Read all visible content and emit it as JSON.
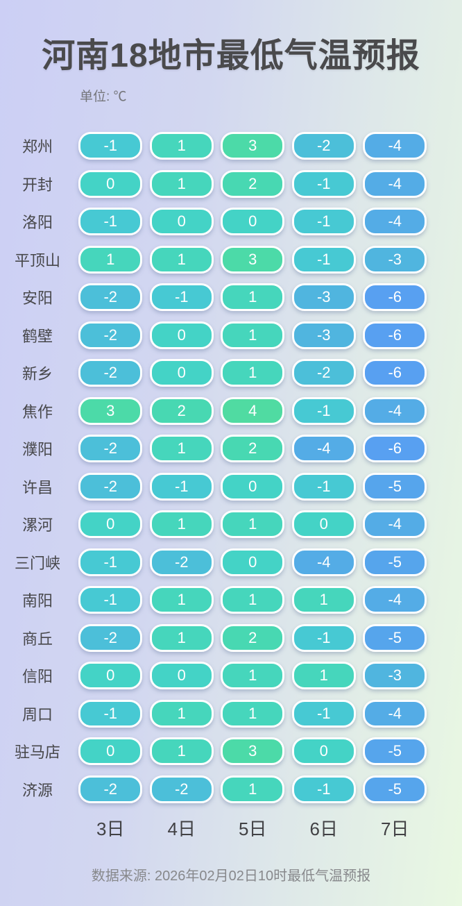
{
  "title": "河南18地市最低气温预报",
  "unit_label": "单位: ℃",
  "source_note": "数据来源: 2026年02月02日10时最低气温预报",
  "colors": {
    "background_left": "#cccff5",
    "background_right": "#e9f8e2",
    "title_text": "#4a4a4c",
    "city_label_text": "#47474a",
    "pill_text": "#ffffff",
    "pill_border": "#ffffff",
    "muted_text": "#87888b",
    "temp_scale": {
      "4": "#50dba2",
      "3": "#4cdaa8",
      "2": "#48d8b2",
      "1": "#46d6bc",
      "0": "#44d3c6",
      "-1": "#47c9d3",
      "-2": "#4cbfd9",
      "-3": "#50b5df",
      "-4": "#54ace6",
      "-5": "#56a5ec",
      "-6": "#58a0f1"
    }
  },
  "chart_data": {
    "type": "table",
    "title": "河南18地市最低气温预报",
    "unit": "℃",
    "columns": [
      "3日",
      "4日",
      "5日",
      "6日",
      "7日"
    ],
    "rows": [
      {
        "city": "郑州",
        "values": [
          -1,
          1,
          3,
          -2,
          -4
        ]
      },
      {
        "city": "开封",
        "values": [
          0,
          1,
          2,
          -1,
          -4
        ]
      },
      {
        "city": "洛阳",
        "values": [
          -1,
          0,
          0,
          -1,
          -4
        ]
      },
      {
        "city": "平顶山",
        "values": [
          1,
          1,
          3,
          -1,
          -3
        ]
      },
      {
        "city": "安阳",
        "values": [
          -2,
          -1,
          1,
          -3,
          -6
        ]
      },
      {
        "city": "鹤壁",
        "values": [
          -2,
          0,
          1,
          -3,
          -6
        ]
      },
      {
        "city": "新乡",
        "values": [
          -2,
          0,
          1,
          -2,
          -6
        ]
      },
      {
        "city": "焦作",
        "values": [
          3,
          2,
          4,
          -1,
          -4
        ]
      },
      {
        "city": "濮阳",
        "values": [
          -2,
          1,
          2,
          -4,
          -6
        ]
      },
      {
        "city": "许昌",
        "values": [
          -2,
          -1,
          0,
          -1,
          -5
        ]
      },
      {
        "city": "漯河",
        "values": [
          0,
          1,
          1,
          0,
          -4
        ]
      },
      {
        "city": "三门峡",
        "values": [
          -1,
          -2,
          0,
          -4,
          -5
        ]
      },
      {
        "city": "南阳",
        "values": [
          -1,
          1,
          1,
          1,
          -4
        ]
      },
      {
        "city": "商丘",
        "values": [
          -2,
          1,
          2,
          -1,
          -5
        ]
      },
      {
        "city": "信阳",
        "values": [
          0,
          0,
          1,
          1,
          -3
        ]
      },
      {
        "city": "周口",
        "values": [
          -1,
          1,
          1,
          -1,
          -4
        ]
      },
      {
        "city": "驻马店",
        "values": [
          0,
          1,
          3,
          0,
          -5
        ]
      },
      {
        "city": "济源",
        "values": [
          -2,
          -2,
          1,
          -1,
          -5
        ]
      }
    ],
    "value_range": [
      -6,
      4
    ],
    "legend_position": "none",
    "source": "数据来源: 2026年02月02日10时最低气温预报"
  }
}
